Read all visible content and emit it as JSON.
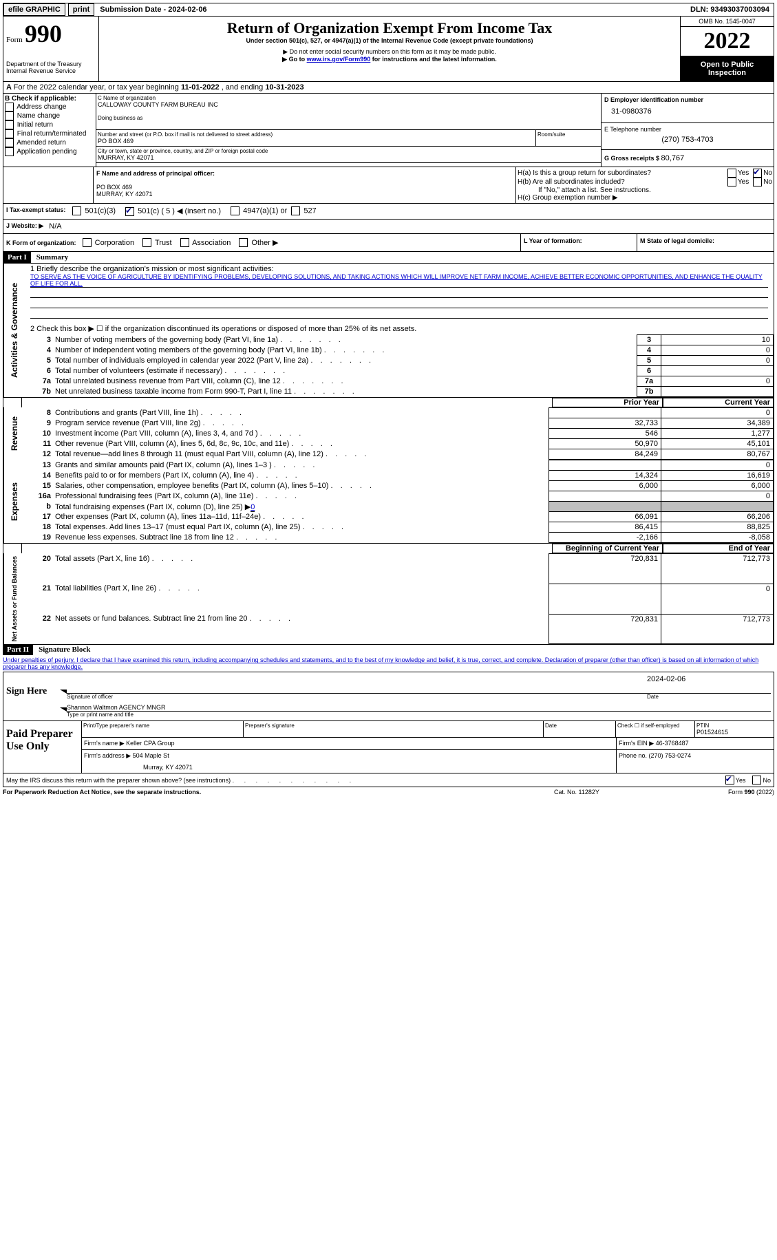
{
  "topbar": {
    "efile": "efile GRAPHIC",
    "print": "print",
    "subdate_label": "Submission Date - ",
    "subdate": "2024-02-06",
    "dln_label": "DLN: ",
    "dln": "93493037003094"
  },
  "header": {
    "form_word": "Form",
    "form_num": "990",
    "dept": "Department of the Treasury",
    "irs": "Internal Revenue Service",
    "title": "Return of Organization Exempt From Income Tax",
    "subtitle": "Under section 501(c), 527, or 4947(a)(1) of the Internal Revenue Code (except private foundations)",
    "note1": "▶ Do not enter social security numbers on this form as it may be made public.",
    "note2_prefix": "▶ Go to ",
    "note2_link": "www.irs.gov/Form990",
    "note2_suffix": " for instructions and the latest information.",
    "omb": "OMB No. 1545-0047",
    "year": "2022",
    "open": "Open to Public Inspection"
  },
  "period": {
    "prefix": "For the 2022 calendar year, or tax year beginning ",
    "begin": "11-01-2022",
    "mid": "  , and ending ",
    "end": "10-31-2023"
  },
  "boxB": {
    "label": "B Check if applicable:",
    "items": [
      "Address change",
      "Name change",
      "Initial return",
      "Final return/terminated",
      "Amended return",
      "Application pending"
    ]
  },
  "boxC": {
    "name_label": "C Name of organization",
    "name": "CALLOWAY COUNTY FARM BUREAU INC",
    "dba_label": "Doing business as",
    "street_label": "Number and street (or P.O. box if mail is not delivered to street address)",
    "room_label": "Room/suite",
    "street": "PO BOX 469",
    "city_label": "City or town, state or province, country, and ZIP or foreign postal code",
    "city": "MURRAY, KY  42071"
  },
  "boxD": {
    "label": "D Employer identification number",
    "value": "31-0980376"
  },
  "boxE": {
    "label": "E Telephone number",
    "value": "(270) 753-4703"
  },
  "boxG": {
    "label": "G Gross receipts $ ",
    "value": "80,767"
  },
  "boxF": {
    "label": "F  Name and address of principal officer:",
    "line2": "PO BOX 469",
    "line3": "MURRAY, KY  42071"
  },
  "boxH": {
    "a": "H(a)  Is this a group return for subordinates?",
    "b": "H(b)  Are all subordinates included?",
    "b_note": "If \"No,\" attach a list. See instructions.",
    "c": "H(c)  Group exemption number ▶",
    "yes": "Yes",
    "no": "No"
  },
  "taxexempt": {
    "label": "I  Tax-exempt status:",
    "c3": "501(c)(3)",
    "c": "501(c) ( 5 ) ◀ (insert no.)",
    "a1": "4947(a)(1) or",
    "s527": "527"
  },
  "website": {
    "label": "J  Website: ▶",
    "value": "N/A"
  },
  "formorg": {
    "label": "K Form of organization:",
    "items": [
      "Corporation",
      "Trust",
      "Association",
      "Other ▶"
    ]
  },
  "yearform": {
    "label": "L Year of formation:",
    "value": ""
  },
  "domicile": {
    "label": "M State of legal domicile:",
    "value": ""
  },
  "part1": {
    "header": "Part I",
    "title": "Summary",
    "line1_label": "1  Briefly describe the organization's mission or most significant activities:",
    "line1_text": "TO SERVE AS THE VOICE OF AGRICULTURE BY IDENTIFYING PROBLEMS, DEVELOPING SOLUTIONS, AND TAKING ACTIONS WHICH WILL IMPROVE NET FARM INCOME, ACHIEVE BETTER ECONOMIC OPPORTUNITIES, AND ENHANCE THE QUALITY OF LIFE FOR ALL.",
    "line2": "2  Check this box ▶ ☐ if the organization discontinued its operations or disposed of more than 25% of its net assets.",
    "governance_label": "Activities & Governance",
    "revenue_label": "Revenue",
    "expenses_label": "Expenses",
    "netassets_label": "Net Assets or Fund Balances",
    "prior": "Prior Year",
    "current": "Current Year",
    "begin": "Beginning of Current Year",
    "endyr": "End of Year",
    "rows_gov": [
      {
        "n": "3",
        "t": "Number of voting members of the governing body (Part VI, line 1a)",
        "v": "10"
      },
      {
        "n": "4",
        "t": "Number of independent voting members of the governing body (Part VI, line 1b)",
        "v": "0"
      },
      {
        "n": "5",
        "t": "Total number of individuals employed in calendar year 2022 (Part V, line 2a)",
        "v": "0"
      },
      {
        "n": "6",
        "t": "Total number of volunteers (estimate if necessary)",
        "v": ""
      },
      {
        "n": "7a",
        "t": "Total unrelated business revenue from Part VIII, column (C), line 12",
        "v": "0"
      },
      {
        "n": "7b",
        "t": "Net unrelated business taxable income from Form 990-T, Part I, line 11",
        "v": ""
      }
    ],
    "rows_rev": [
      {
        "n": "8",
        "t": "Contributions and grants (Part VIII, line 1h)",
        "p": "",
        "c": "0"
      },
      {
        "n": "9",
        "t": "Program service revenue (Part VIII, line 2g)",
        "p": "32,733",
        "c": "34,389"
      },
      {
        "n": "10",
        "t": "Investment income (Part VIII, column (A), lines 3, 4, and 7d )",
        "p": "546",
        "c": "1,277"
      },
      {
        "n": "11",
        "t": "Other revenue (Part VIII, column (A), lines 5, 6d, 8c, 9c, 10c, and 11e)",
        "p": "50,970",
        "c": "45,101"
      },
      {
        "n": "12",
        "t": "Total revenue—add lines 8 through 11 (must equal Part VIII, column (A), line 12)",
        "p": "84,249",
        "c": "80,767"
      }
    ],
    "rows_exp": [
      {
        "n": "13",
        "t": "Grants and similar amounts paid (Part IX, column (A), lines 1–3 )",
        "p": "",
        "c": "0"
      },
      {
        "n": "14",
        "t": "Benefits paid to or for members (Part IX, column (A), line 4)",
        "p": "14,324",
        "c": "16,619"
      },
      {
        "n": "15",
        "t": "Salaries, other compensation, employee benefits (Part IX, column (A), lines 5–10)",
        "p": "6,000",
        "c": "6,000"
      },
      {
        "n": "16a",
        "t": "Professional fundraising fees (Part IX, column (A), line 11e)",
        "p": "",
        "c": "0"
      },
      {
        "n": "b",
        "t": "Total fundraising expenses (Part IX, column (D), line 25) ▶",
        "p": "grey",
        "c": "grey",
        "fund": "0"
      },
      {
        "n": "17",
        "t": "Other expenses (Part IX, column (A), lines 11a–11d, 11f–24e)",
        "p": "66,091",
        "c": "66,206"
      },
      {
        "n": "18",
        "t": "Total expenses. Add lines 13–17 (must equal Part IX, column (A), line 25)",
        "p": "86,415",
        "c": "88,825"
      },
      {
        "n": "19",
        "t": "Revenue less expenses. Subtract line 18 from line 12",
        "p": "-2,166",
        "c": "-8,058"
      }
    ],
    "rows_net": [
      {
        "n": "20",
        "t": "Total assets (Part X, line 16)",
        "p": "720,831",
        "c": "712,773"
      },
      {
        "n": "21",
        "t": "Total liabilities (Part X, line 26)",
        "p": "",
        "c": "0"
      },
      {
        "n": "22",
        "t": "Net assets or fund balances. Subtract line 21 from line 20",
        "p": "720,831",
        "c": "712,773"
      }
    ]
  },
  "part2": {
    "header": "Part II",
    "title": "Signature Block",
    "decl": "Under penalties of perjury, I declare that I have examined this return, including accompanying schedules and statements, and to the best of my knowledge and belief, it is true, correct, and complete. Declaration of preparer (other than officer) is based on all information of which preparer has any knowledge."
  },
  "sign": {
    "label": "Sign Here",
    "sig_officer": "Signature of officer",
    "date_label": "Date",
    "date": "2024-02-06",
    "name": "Shannon Waltmon AGENCY MNGR",
    "name_label": "Type or print name and title"
  },
  "preparer": {
    "label": "Paid Preparer Use Only",
    "print_label": "Print/Type preparer's name",
    "sig_label": "Preparer's signature",
    "date_label": "Date",
    "check_label": "Check ☐ if self-employed",
    "ptin_label": "PTIN",
    "ptin": "P01524615",
    "firm_name_label": "Firm's name    ▶ ",
    "firm_name": "Keller CPA Group",
    "firm_ein_label": "Firm's EIN ▶ ",
    "firm_ein": "46-3768487",
    "firm_addr_label": "Firm's address ▶ ",
    "firm_addr1": "504 Maple St",
    "firm_addr2": "Murray, KY  42071",
    "phone_label": "Phone no. ",
    "phone": "(270) 753-0274"
  },
  "footer": {
    "discuss": "May the IRS discuss this return with the preparer shown above? (see instructions)",
    "yes": "Yes",
    "no": "No",
    "pra": "For Paperwork Reduction Act Notice, see the separate instructions.",
    "cat": "Cat. No. 11282Y",
    "form": "Form 990 (2022)"
  }
}
